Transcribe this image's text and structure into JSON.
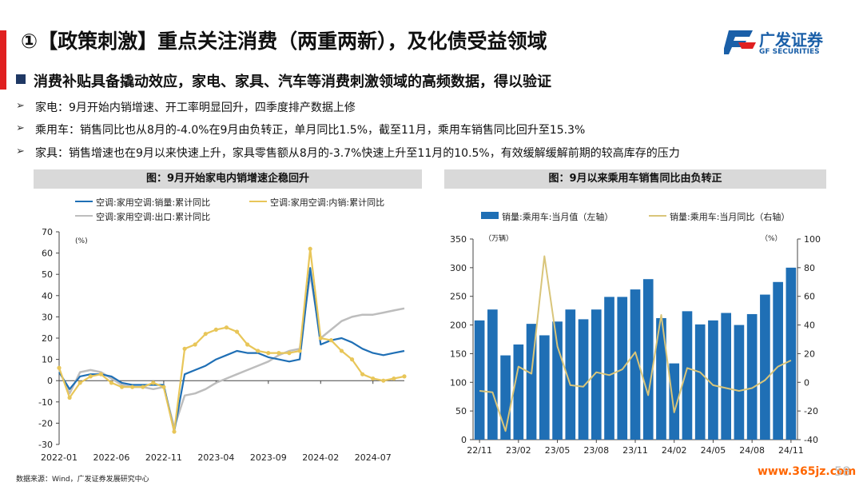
{
  "title": "①【政策刺激】重点关注消费（两重两新），及化债受益领域",
  "logo": {
    "cn": "广发证券",
    "en": "GF SECURITIES"
  },
  "subtitle": "消费补贴具备撬动效应，家电、家具、汽车等消费刺激领域的高频数据，得以验证",
  "bullets": [
    "家电：9月开始内销增速、开工率明显回升，四季度排产数据上修",
    "乘用车：销售同比也从8月的-4.0%在9月由负转正，单月同比1.5%，截至11月，乘用车销售同比回升至15.3%",
    "家具：销售增速也在9月以来快速上升，家具零售额从8月的-3.7%快速上升至11月的10.5%，有效缓解缓解前期的较高库存的压力"
  ],
  "source": "数据来源：Wind，广发证券发展研究中心",
  "page_number": "58",
  "watermark": "www.365jz.com",
  "colors": {
    "accent_red": "#e02020",
    "blue": "#1f6fb5",
    "yellow": "#e8c659",
    "gray": "#bdbdbd",
    "bar_blue": "#1f6fb5",
    "car_line": "#d9c57a"
  },
  "chart_data": [
    {
      "type": "line",
      "title": "图：9月开始家电内销增速企稳回升",
      "unit_label": "(%)",
      "ylim": [
        -30,
        70
      ],
      "yticks": [
        -30,
        -20,
        -10,
        0,
        10,
        20,
        30,
        40,
        50,
        60,
        70
      ],
      "xtick_labels": [
        "2022-01",
        "2022-06",
        "2022-11",
        "2023-04",
        "2023-09",
        "2024-02",
        "2024-07"
      ],
      "x_index_of_ticks": [
        0,
        5,
        10,
        15,
        20,
        25,
        30
      ],
      "x_count": 34,
      "series": [
        {
          "name": "空调:家用空调:销量:累计同比",
          "color": "#1f6fb5",
          "values": [
            4,
            -4,
            2,
            3,
            3,
            2,
            -1,
            -2,
            -2,
            -2,
            -2,
            -24,
            3,
            5,
            7,
            10,
            12,
            14,
            13,
            13,
            11,
            10,
            9,
            10,
            53,
            17,
            19,
            20,
            18,
            15,
            13,
            12,
            13,
            14
          ]
        },
        {
          "name": "空调:家用空调:内销:累计同比",
          "color": "#e8c659",
          "values": [
            6,
            -8,
            -1,
            2,
            3,
            -1,
            -3,
            -3,
            -3,
            -1,
            -3,
            -24,
            15,
            17,
            22,
            24,
            25,
            23,
            17,
            14,
            13,
            13,
            13,
            14,
            62,
            20,
            19,
            14,
            10,
            3,
            1,
            0,
            1,
            2
          ]
        },
        {
          "name": "空调:家用空调:出口:累计同比",
          "color": "#bdbdbd",
          "values": [
            5,
            -6,
            4,
            5,
            4,
            1,
            -2,
            -3,
            -3,
            -4,
            -3,
            -22,
            -7,
            -6,
            -4,
            -1,
            1,
            3,
            5,
            7,
            9,
            12,
            14,
            15,
            50,
            20,
            24,
            28,
            30,
            31,
            31,
            32,
            33,
            34
          ]
        }
      ]
    },
    {
      "type": "bar+line",
      "title": "图：9月以来乘用车销售同比由负转正",
      "left_unit": "（万辆）",
      "right_unit": "（%）",
      "ylim_left": [
        0,
        350
      ],
      "yticks_left": [
        0,
        50,
        100,
        150,
        200,
        250,
        300,
        350
      ],
      "ylim_right": [
        -40,
        100
      ],
      "yticks_right": [
        -40,
        -20,
        0,
        20,
        40,
        60,
        80,
        100
      ],
      "categories": [
        "22/11",
        "22/12",
        "23/01",
        "23/02",
        "23/03",
        "23/04",
        "23/05",
        "23/06",
        "23/07",
        "23/08",
        "23/09",
        "23/10",
        "23/11",
        "23/12",
        "24/01",
        "24/02",
        "24/03",
        "24/04",
        "24/05",
        "24/06",
        "24/07",
        "24/08",
        "24/09",
        "24/10",
        "24/11"
      ],
      "xtick_labels": [
        "22/11",
        "23/02",
        "23/05",
        "23/08",
        "23/11",
        "24/02",
        "24/05",
        "24/08",
        "24/11"
      ],
      "x_index_of_ticks": [
        0,
        3,
        6,
        9,
        12,
        15,
        18,
        21,
        24
      ],
      "series": [
        {
          "name": "销量:乘用车:当月值（左轴）",
          "color": "#1f6fb5",
          "axis": "left",
          "values": [
            208,
            227,
            147,
            166,
            202,
            182,
            206,
            227,
            210,
            227,
            249,
            249,
            262,
            280,
            212,
            133,
            224,
            201,
            208,
            221,
            200,
            219,
            253,
            275,
            300
          ]
        },
        {
          "name": "销量:乘用车:当月同比（右轴）",
          "color": "#d9c57a",
          "axis": "right",
          "values": [
            -6,
            -7,
            -34,
            11,
            6,
            88,
            25,
            -2,
            -3,
            7,
            5,
            9,
            21,
            -9,
            47,
            -21,
            10,
            7,
            -2,
            -4,
            -6,
            -4,
            1.5,
            11,
            15.3
          ]
        }
      ]
    }
  ]
}
